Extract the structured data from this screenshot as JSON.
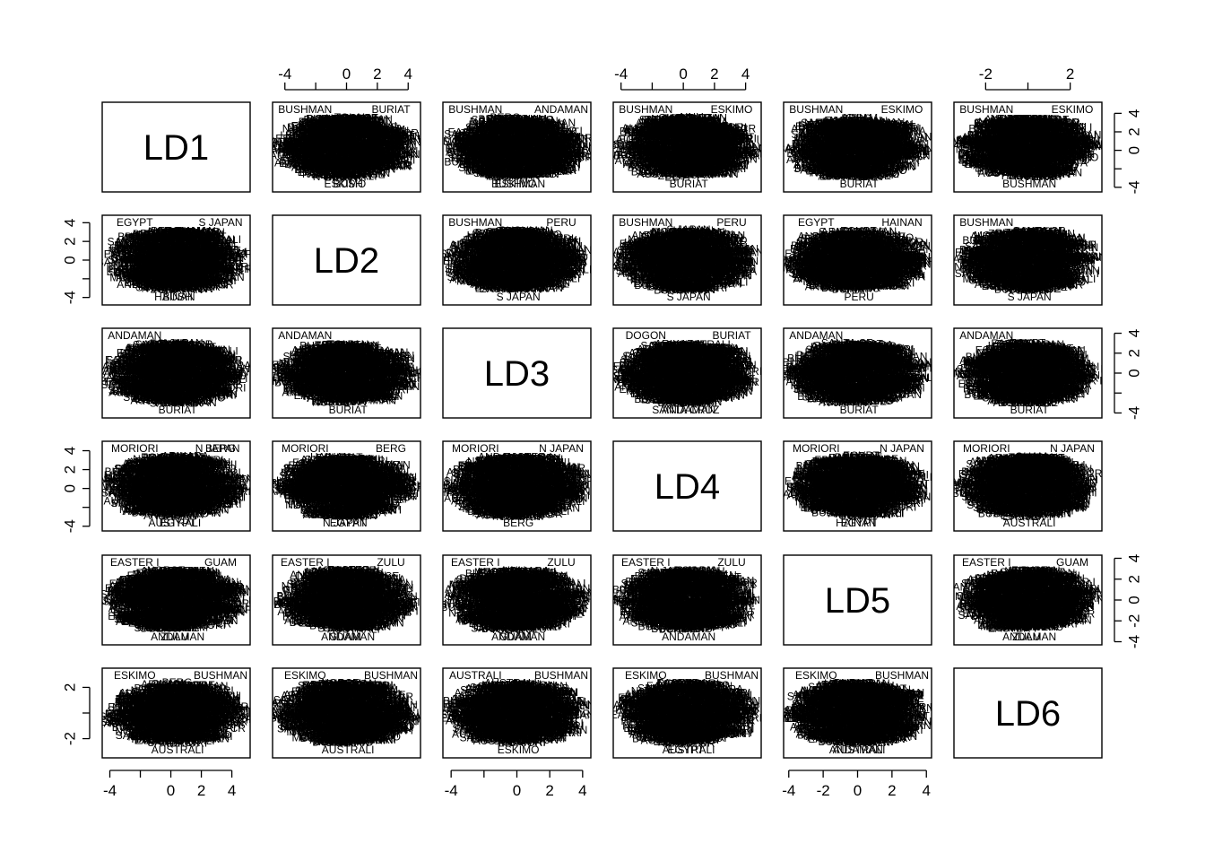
{
  "chart_data": {
    "type": "scatter",
    "variables": [
      "LD1",
      "LD2",
      "LD3",
      "LD4",
      "LD5",
      "LD6"
    ],
    "point_marker": "text labels (population names), heavily overplotted",
    "axes": {
      "LD1": {
        "ticks": [
          "-4",
          "0",
          "2",
          "4"
        ],
        "range": [
          -4.5,
          5.2
        ]
      },
      "LD2": {
        "ticks": [
          "-4",
          "0",
          "2",
          "4"
        ],
        "range": [
          -4.8,
          4.8
        ]
      },
      "LD3": {
        "ticks": [
          "-4",
          "0",
          "2",
          "4"
        ],
        "range": [
          -4.5,
          4.5
        ]
      },
      "LD4": {
        "ticks": [
          "-4",
          "0",
          "2",
          "4"
        ],
        "range": [
          -4.5,
          5.0
        ]
      },
      "LD5": {
        "ticks": [
          "-4",
          "-2",
          "0",
          "2",
          "4"
        ],
        "range": [
          -4.3,
          4.3
        ]
      },
      "LD6": {
        "ticks": [
          "-2",
          "2"
        ],
        "range": [
          -3.5,
          3.5
        ]
      }
    },
    "top_axes": [
      "LD2",
      "LD4",
      "LD6"
    ],
    "bottom_axes": [
      "LD1",
      "LD3",
      "LD5"
    ],
    "left_axes": [
      "LD2",
      "LD4",
      "LD6"
    ],
    "right_axes": [
      "LD1",
      "LD3",
      "LD5"
    ],
    "edge_labels": [
      {
        "row": 0,
        "col": 1,
        "texts": [
          "BUSHMAN",
          "BUSH",
          "BURIAT",
          "ESKIMO"
        ]
      },
      {
        "row": 0,
        "col": 2,
        "texts": [
          "BUSHMAN",
          "BUSHMAN",
          "ANDAMAN",
          "ESKIMO"
        ]
      },
      {
        "row": 0,
        "col": 3,
        "texts": [
          "BUSHMAN",
          "BURIAT",
          "ESKIMO"
        ]
      },
      {
        "row": 0,
        "col": 4,
        "texts": [
          "BUSHMAN",
          "BURIAT",
          "ESKIMO"
        ]
      },
      {
        "row": 0,
        "col": 5,
        "texts": [
          "BUSHMAN",
          "BUSHMAN",
          "ESKIMO"
        ]
      },
      {
        "row": 1,
        "col": 0,
        "texts": [
          "EGYPT",
          "BUSH",
          "S JAPAN",
          "HAINAN"
        ]
      },
      {
        "row": 1,
        "col": 2,
        "texts": [
          "BUSHMAN",
          "S JAPAN",
          "PERU"
        ]
      },
      {
        "row": 1,
        "col": 3,
        "texts": [
          "BUSHMAN",
          "S JAPAN",
          "PERU"
        ]
      },
      {
        "row": 1,
        "col": 4,
        "texts": [
          "EGYPT",
          "PERU",
          "HAINAN"
        ]
      },
      {
        "row": 1,
        "col": 5,
        "texts": [
          "BUSHMAN",
          "S JAPAN"
        ]
      },
      {
        "row": 2,
        "col": 0,
        "texts": [
          "ANDAMAN",
          "BURIAT"
        ]
      },
      {
        "row": 2,
        "col": 1,
        "texts": [
          "ANDAMAN",
          "BURIAT"
        ]
      },
      {
        "row": 2,
        "col": 3,
        "texts": [
          "DOGON",
          "ANDAMAN",
          "BURIAT",
          "SANTA CRUZ"
        ]
      },
      {
        "row": 2,
        "col": 4,
        "texts": [
          "ANDAMAN",
          "BURIAT"
        ]
      },
      {
        "row": 2,
        "col": 5,
        "texts": [
          "ANDAMAN",
          "BURIAT"
        ]
      },
      {
        "row": 3,
        "col": 0,
        "texts": [
          "MORIORI",
          "EGYPT",
          "BERG",
          "AUSTRALI",
          "N JAPAN"
        ]
      },
      {
        "row": 3,
        "col": 1,
        "texts": [
          "MORIORI",
          "EGYPT",
          "BERG",
          "N JAPAN"
        ]
      },
      {
        "row": 3,
        "col": 2,
        "texts": [
          "MORIORI",
          "BERG",
          "N JAPAN"
        ]
      },
      {
        "row": 3,
        "col": 4,
        "texts": [
          "MORIORI",
          "EGYPT",
          "N JAPAN",
          "HAINAN"
        ]
      },
      {
        "row": 3,
        "col": 5,
        "texts": [
          "MORIORI",
          "AUSTRALI",
          "N JAPAN"
        ]
      },
      {
        "row": 4,
        "col": 0,
        "texts": [
          "EASTER I",
          "ANDAMAN",
          "GUAM",
          "ZULU"
        ]
      },
      {
        "row": 4,
        "col": 1,
        "texts": [
          "EASTER I",
          "ANDAMAN",
          "ZULU",
          "GUAM"
        ]
      },
      {
        "row": 4,
        "col": 2,
        "texts": [
          "EASTER I",
          "ANDAMAN",
          "ZULU",
          "GUAM"
        ]
      },
      {
        "row": 4,
        "col": 3,
        "texts": [
          "EASTER I",
          "ANDAMAN",
          "ZULU"
        ]
      },
      {
        "row": 4,
        "col": 5,
        "texts": [
          "EASTER I",
          "ANDAMAN",
          "GUAM",
          "ZULU"
        ]
      },
      {
        "row": 5,
        "col": 0,
        "texts": [
          "ESKIMO",
          "AUSTRALI",
          "BUSHMAN"
        ]
      },
      {
        "row": 5,
        "col": 1,
        "texts": [
          "ESKIMO",
          "AUSTRALI",
          "BUSHMAN"
        ]
      },
      {
        "row": 5,
        "col": 2,
        "texts": [
          "AUSTRALI",
          "ESKIMO",
          "BUSHMAN"
        ]
      },
      {
        "row": 5,
        "col": 3,
        "texts": [
          "ESKIMO",
          "AUSTRALI",
          "BUSHMAN",
          "EGYPT"
        ]
      },
      {
        "row": 5,
        "col": 4,
        "texts": [
          "ESKIMO",
          "AUSTRALI",
          "BUSHMAN",
          "ANDAMAN"
        ]
      }
    ]
  }
}
